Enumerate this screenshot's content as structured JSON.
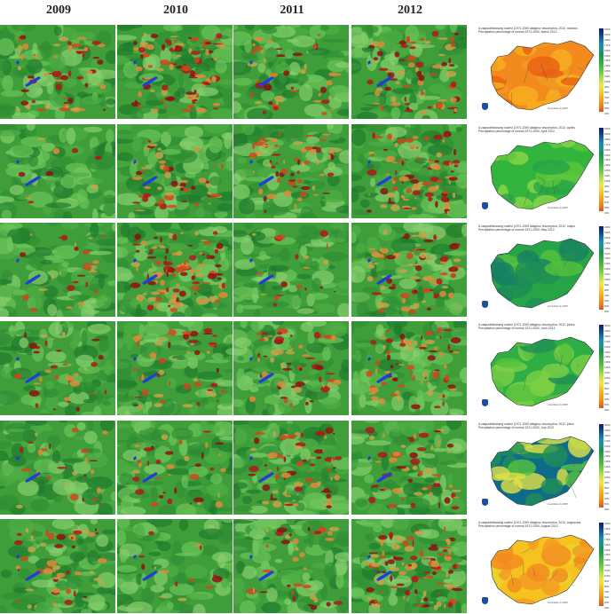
{
  "years": [
    "2009",
    "2010",
    "2011",
    "2012"
  ],
  "rows": [
    {
      "caption_hu": "A csapadékösszeg sokévi (1971-2000 átlaghoz viszonyítva, 2012. március",
      "caption_en": "Precipitation percentage of normal 1971-2000, March 2012.",
      "map_palette": [
        "#f28a1e",
        "#f6b01f",
        "#e95f13",
        "#f39a24"
      ],
      "drought": [
        0.35,
        0.55,
        0.25,
        0.45
      ]
    },
    {
      "caption_hu": "A csapadékösszeg sokévi (1971-2000 átlaghoz viszonyítva, 2012. április",
      "caption_en": "Precipitation percentage of normal 1971-2000, April 2012.",
      "map_palette": [
        "#33b53d",
        "#5cc73c",
        "#8cd64a",
        "#27a446"
      ],
      "drought": [
        0.05,
        0.3,
        0.4,
        0.55
      ]
    },
    {
      "caption_hu": "A csapadékösszeg sokévi (1971-2000 átlaghoz viszonyítva, 2012. május",
      "caption_en": "Precipitation percentage of normal 1971-2000, May 2012.",
      "map_palette": [
        "#27a446",
        "#1f8f55",
        "#56c23d",
        "#178263"
      ],
      "drought": [
        0.15,
        0.65,
        0.12,
        0.45
      ]
    },
    {
      "caption_hu": "A csapadékösszeg sokévi (1971-2000 átlaghoz viszonyítva, 2012. június",
      "caption_en": "Precipitation percentage of normal 1971-2000, June 2012.",
      "map_palette": [
        "#2fae45",
        "#56c23d",
        "#1f8f55",
        "#7dcf45"
      ],
      "drought": [
        0.18,
        0.3,
        0.35,
        0.45
      ]
    },
    {
      "caption_hu": "A csapadékösszeg sokévi (1971-2000 átlaghoz viszonyítva, 2012. július",
      "caption_en": "Precipitation percentage of normal 1971-2000, July 2012.",
      "map_palette": [
        "#0f6b8a",
        "#1f8f55",
        "#56c23d",
        "#e0e246"
      ],
      "drought": [
        0.15,
        0.22,
        0.42,
        0.32
      ]
    },
    {
      "caption_hu": "A csapadékösszeg sokévi (1971-2000 átlaghoz viszonyítva, 2012. augusztus",
      "caption_en": "Precipitation percentage of normal 1971-2000, August 2012.",
      "map_palette": [
        "#f6c21f",
        "#f39a24",
        "#e9d42a",
        "#f28a1e"
      ],
      "drought": [
        0.3,
        0.08,
        0.2,
        0.58
      ]
    }
  ],
  "legend_ticks": [
    "200%",
    "190%",
    "180%",
    "170%",
    "160%",
    "150%",
    "140%",
    "130%",
    "120%",
    "110%",
    "100%",
    "90%",
    "80%",
    "70%",
    "60%",
    "50%",
    "40%"
  ],
  "legend_colors": [
    "#0b1d7a",
    "#10388e",
    "#1565a6",
    "#1b8ab3",
    "#169a84",
    "#1f8f55",
    "#27a446",
    "#3cb43d",
    "#62c43c",
    "#8cd64a",
    "#bde44c",
    "#e8e84a",
    "#f6d22a",
    "#f6b01f",
    "#f39a24",
    "#ec7a1c",
    "#e05515"
  ],
  "credit": "Interpolation by MISH"
}
